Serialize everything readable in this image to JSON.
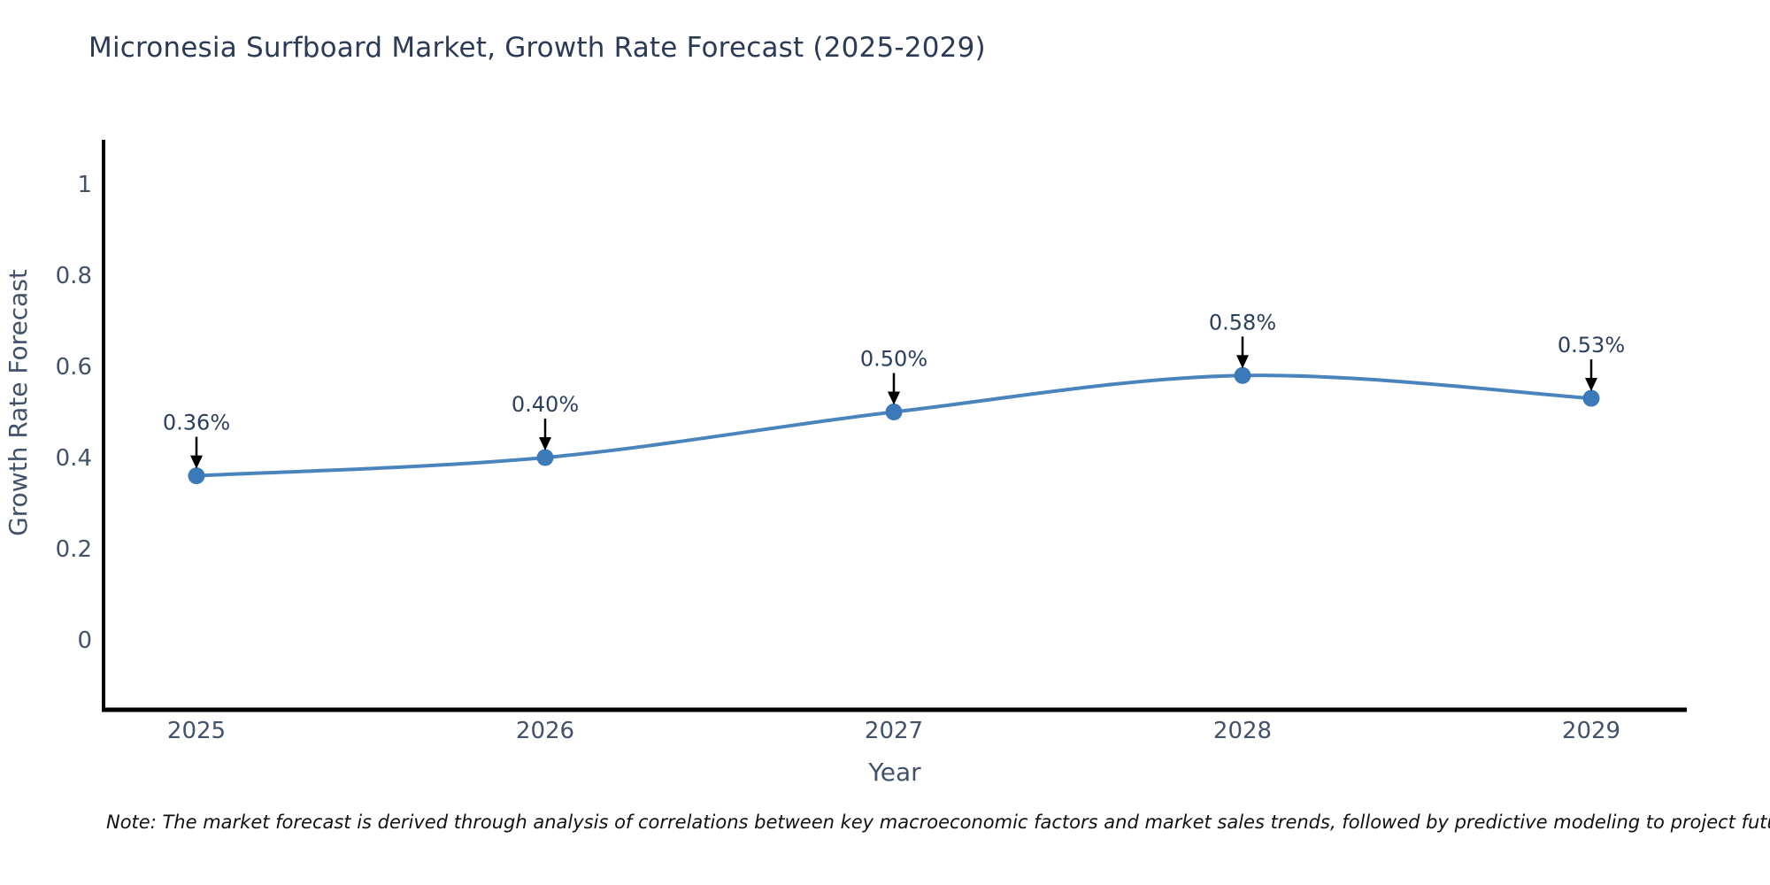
{
  "chart_data": {
    "type": "line",
    "title": "Micronesia Surfboard Market, Growth Rate Forecast (2025-2029)",
    "xlabel": "Year",
    "ylabel": "Growth Rate Forecast",
    "categories": [
      "2025",
      "2026",
      "2027",
      "2028",
      "2029"
    ],
    "values": [
      0.36,
      0.4,
      0.5,
      0.58,
      0.53
    ],
    "point_labels": [
      "0.36%",
      "0.40%",
      "0.50%",
      "0.58%",
      "0.53%"
    ],
    "series_name": "Growth Rate Forecast",
    "y_tick_labels": [
      "1",
      "0.8",
      "0.6",
      "0.4",
      "0.2",
      "0"
    ],
    "y_tick_values": [
      1,
      0.8,
      0.6,
      0.4,
      0.2,
      0
    ],
    "ylim": [
      -0.155,
      1.095
    ],
    "grid": false,
    "legend_position": "none",
    "line_shape": "spline",
    "annotations_have_arrows": true,
    "colors": {
      "line": "#4a84bd",
      "marker": "#3b79b8",
      "axis_line": "#000000",
      "title_text": "#2b3a55",
      "tick_text": "#42526b",
      "annotation_text": "#2a3f5f",
      "arrow": "#000000",
      "note_text": "#111111",
      "background": "#ffffff"
    }
  },
  "note": {
    "text": "Note: The market forecast is derived through analysis of correlations between key macroeconomic factors and market sales trends, followed by predictive modeling to project future sales"
  }
}
